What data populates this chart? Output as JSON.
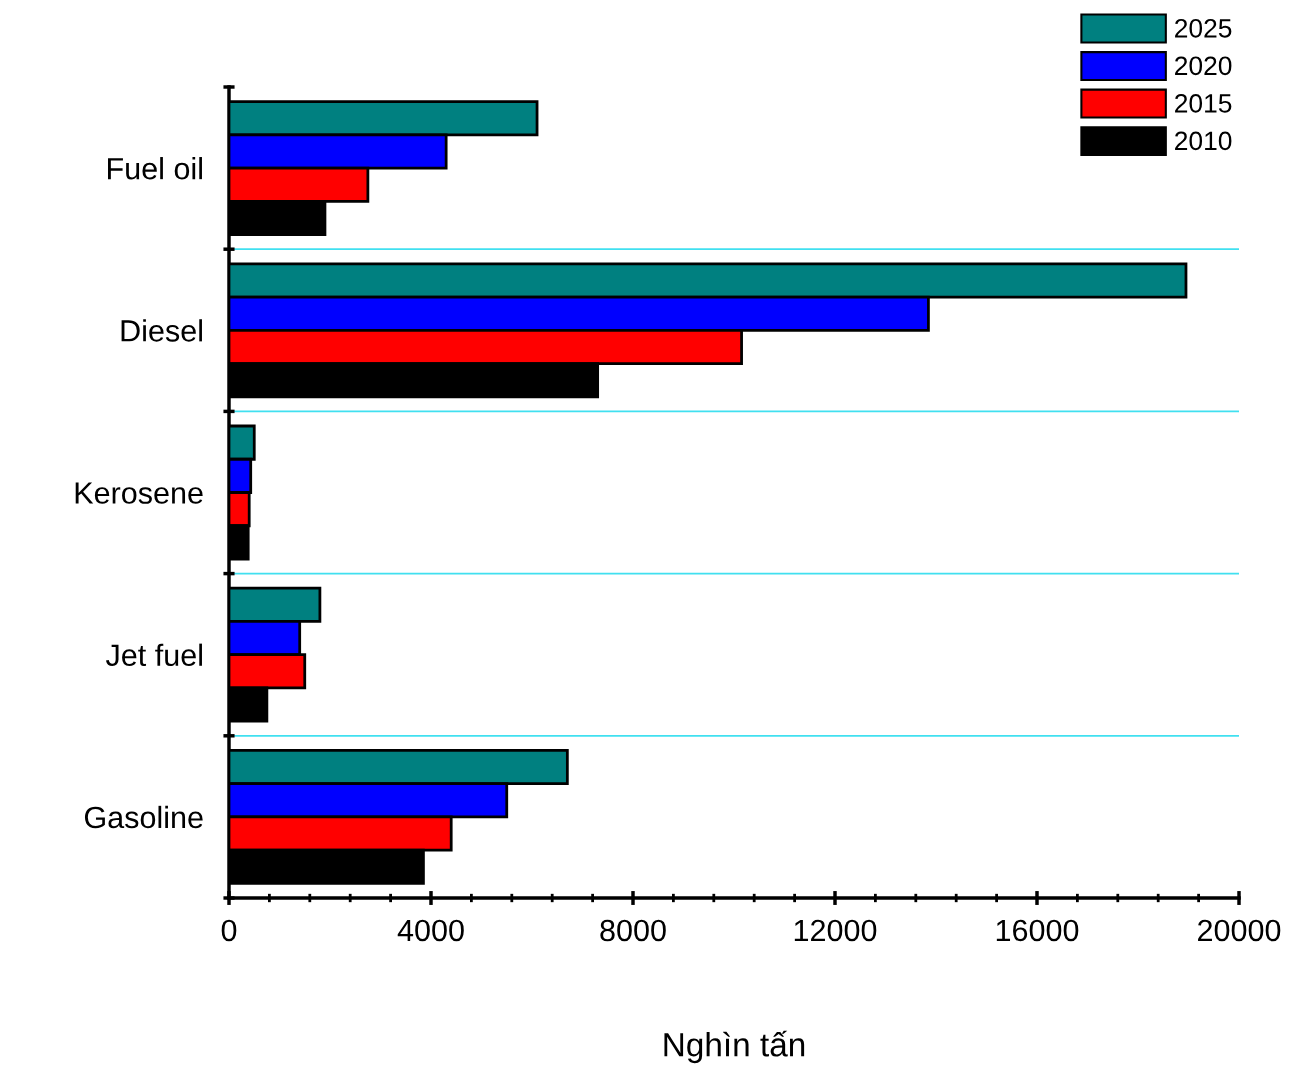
{
  "chart_data": {
    "type": "bar",
    "orientation": "horizontal",
    "xlabel": "Nghìn tấn",
    "categories": [
      "Fuel oil",
      "Diesel",
      "Kerosene",
      "Jet fuel",
      "Gasoline"
    ],
    "series": [
      {
        "name": "2025",
        "color": "#008080",
        "values": [
          6100,
          18950,
          500,
          1800,
          6700
        ]
      },
      {
        "name": "2020",
        "color": "#0000ff",
        "values": [
          4300,
          13850,
          430,
          1400,
          5500
        ]
      },
      {
        "name": "2015",
        "color": "#ff0000",
        "values": [
          2750,
          10150,
          400,
          1500,
          4400
        ]
      },
      {
        "name": "2010",
        "color": "#000000",
        "values": [
          1900,
          7300,
          380,
          750,
          3850
        ]
      }
    ],
    "xlim": [
      0,
      20000
    ],
    "xticks": [
      0,
      4000,
      8000,
      12000,
      16000,
      20000
    ],
    "grid": "y",
    "legend": "top right"
  }
}
